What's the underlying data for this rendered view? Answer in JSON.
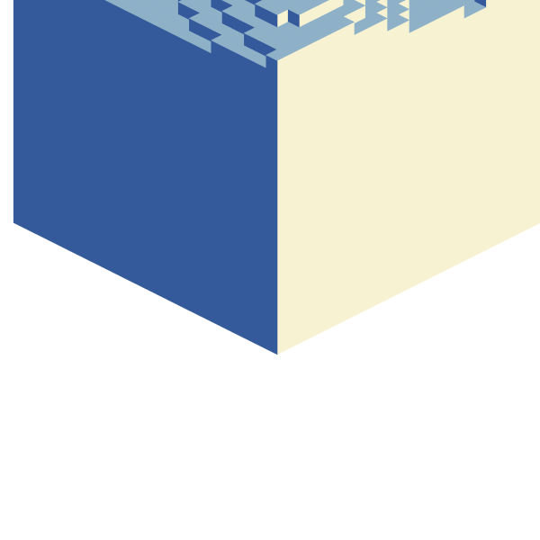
{
  "colors": {
    "top": "#8fb1c8",
    "left": "#345a9b",
    "right": "#f7f3d2",
    "background": "#ffffff"
  },
  "surface": {
    "description_key": "voxel-height-field",
    "grid_size": 24,
    "base_height": 8,
    "min_height": 11,
    "max_height": 22
  }
}
